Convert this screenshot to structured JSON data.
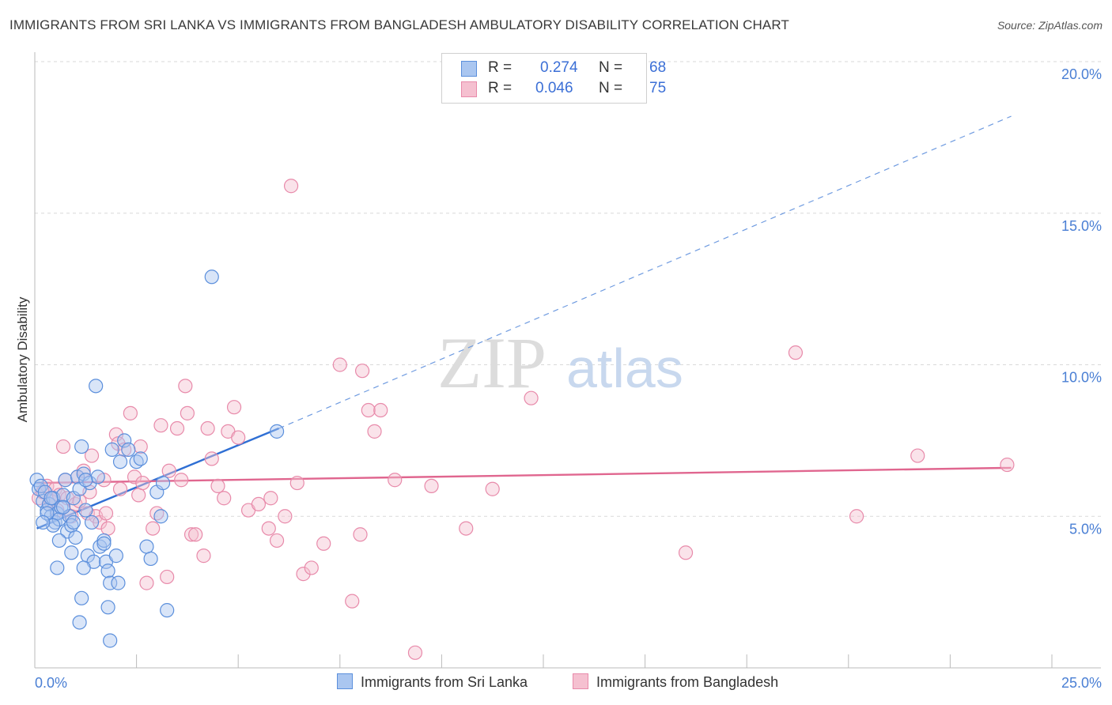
{
  "title": "IMMIGRANTS FROM SRI LANKA VS IMMIGRANTS FROM BANGLADESH AMBULATORY DISABILITY CORRELATION CHART",
  "source": "Source: ZipAtlas.com",
  "watermark": {
    "zip": "ZIP",
    "atlas": "atlas"
  },
  "legend": {
    "r_label": "R =",
    "n_label": "N =",
    "rows": [
      {
        "r": "0.274",
        "n": "68",
        "fill": "#aac6f0",
        "stroke": "#5b8fdc"
      },
      {
        "r": "0.046",
        "n": "75",
        "fill": "#f5c0d0",
        "stroke": "#e88aaa"
      }
    ]
  },
  "chart_data": {
    "type": "scatter",
    "title": "IMMIGRANTS FROM SRI LANKA VS IMMIGRANTS FROM BANGLADESH AMBULATORY DISABILITY CORRELATION CHART",
    "xlabel": "",
    "ylabel": "Ambulatory Disability",
    "xlim": [
      0,
      25
    ],
    "ylim": [
      0,
      20
    ],
    "x_tick_labels": [
      "0.0%",
      "25.0%"
    ],
    "y_tick_labels": [
      "5.0%",
      "10.0%",
      "15.0%",
      "20.0%"
    ],
    "y_ticks": [
      5,
      10,
      15,
      20
    ],
    "series": [
      {
        "name": "Immigrants from Sri Lanka",
        "color": "#5b8fdc",
        "fill": "#aac6f0",
        "r": 0.274,
        "n": 68,
        "trend": {
          "x0": 0.05,
          "y0": 4.6,
          "x1": 6.0,
          "y1": 7.9,
          "dash_to_x": 24.0,
          "dash_to_y": 18.2
        },
        "points": [
          [
            0.05,
            6.2
          ],
          [
            0.1,
            5.9
          ],
          [
            0.15,
            6.0
          ],
          [
            0.2,
            5.5
          ],
          [
            0.25,
            5.8
          ],
          [
            0.3,
            5.2
          ],
          [
            0.35,
            5.4
          ],
          [
            0.4,
            5.0
          ],
          [
            0.45,
            5.6
          ],
          [
            0.5,
            4.8
          ],
          [
            0.55,
            5.1
          ],
          [
            0.6,
            4.9
          ],
          [
            0.65,
            5.3
          ],
          [
            0.7,
            5.7
          ],
          [
            0.75,
            6.2
          ],
          [
            0.8,
            4.5
          ],
          [
            0.85,
            5.0
          ],
          [
            0.9,
            4.7
          ],
          [
            0.95,
            5.6
          ],
          [
            1.0,
            4.3
          ],
          [
            1.05,
            6.3
          ],
          [
            1.1,
            5.9
          ],
          [
            1.15,
            7.3
          ],
          [
            1.2,
            6.4
          ],
          [
            1.25,
            5.2
          ],
          [
            1.3,
            3.7
          ],
          [
            1.35,
            6.1
          ],
          [
            1.4,
            4.8
          ],
          [
            1.45,
            3.5
          ],
          [
            1.5,
            9.3
          ],
          [
            1.55,
            6.3
          ],
          [
            1.6,
            4.0
          ],
          [
            1.7,
            4.2
          ],
          [
            1.75,
            3.5
          ],
          [
            1.8,
            3.2
          ],
          [
            1.85,
            2.8
          ],
          [
            1.9,
            7.2
          ],
          [
            2.0,
            3.7
          ],
          [
            2.05,
            2.8
          ],
          [
            2.1,
            6.8
          ],
          [
            2.2,
            7.5
          ],
          [
            2.3,
            7.2
          ],
          [
            2.5,
            6.8
          ],
          [
            2.6,
            6.9
          ],
          [
            2.75,
            4.0
          ],
          [
            2.85,
            3.6
          ],
          [
            3.0,
            5.8
          ],
          [
            3.1,
            5.0
          ],
          [
            3.25,
            1.9
          ],
          [
            1.8,
            2.0
          ],
          [
            1.7,
            4.1
          ],
          [
            1.2,
            3.3
          ],
          [
            0.6,
            4.2
          ],
          [
            0.55,
            3.3
          ],
          [
            0.9,
            3.8
          ],
          [
            1.15,
            2.3
          ],
          [
            1.1,
            1.5
          ],
          [
            1.85,
            0.9
          ],
          [
            0.3,
            5.1
          ],
          [
            0.45,
            4.7
          ],
          [
            0.7,
            5.3
          ],
          [
            0.95,
            4.8
          ],
          [
            3.15,
            6.1
          ],
          [
            5.95,
            7.8
          ],
          [
            4.35,
            12.9
          ],
          [
            1.25,
            6.2
          ],
          [
            0.4,
            5.6
          ],
          [
            0.2,
            4.8
          ]
        ]
      },
      {
        "name": "Immigrants from Bangladesh",
        "color": "#e8739a",
        "fill": "#f5c0d0",
        "r": 0.046,
        "n": 75,
        "trend": {
          "x0": 0.05,
          "y0": 6.1,
          "x1": 24.0,
          "y1": 6.6
        },
        "points": [
          [
            0.1,
            5.6
          ],
          [
            0.2,
            5.8
          ],
          [
            0.3,
            6.0
          ],
          [
            0.35,
            5.4
          ],
          [
            0.4,
            5.5
          ],
          [
            0.5,
            5.9
          ],
          [
            0.55,
            5.2
          ],
          [
            0.6,
            5.7
          ],
          [
            0.7,
            7.3
          ],
          [
            0.75,
            6.2
          ],
          [
            0.8,
            5.6
          ],
          [
            0.9,
            5.0
          ],
          [
            1.0,
            5.4
          ],
          [
            1.05,
            6.3
          ],
          [
            1.1,
            5.5
          ],
          [
            1.2,
            6.5
          ],
          [
            1.3,
            5.1
          ],
          [
            1.35,
            5.8
          ],
          [
            1.4,
            7.0
          ],
          [
            1.5,
            5.0
          ],
          [
            1.6,
            4.8
          ],
          [
            1.7,
            6.2
          ],
          [
            1.75,
            5.1
          ],
          [
            1.8,
            4.6
          ],
          [
            2.0,
            7.7
          ],
          [
            2.05,
            7.4
          ],
          [
            2.1,
            5.9
          ],
          [
            2.2,
            7.2
          ],
          [
            2.35,
            8.4
          ],
          [
            2.45,
            6.3
          ],
          [
            2.55,
            5.7
          ],
          [
            2.65,
            6.1
          ],
          [
            2.75,
            2.8
          ],
          [
            2.9,
            4.6
          ],
          [
            3.0,
            5.1
          ],
          [
            3.1,
            8.0
          ],
          [
            3.25,
            3.0
          ],
          [
            3.3,
            6.5
          ],
          [
            3.5,
            7.9
          ],
          [
            3.6,
            6.2
          ],
          [
            3.7,
            9.3
          ],
          [
            3.75,
            8.4
          ],
          [
            3.85,
            4.4
          ],
          [
            3.95,
            4.4
          ],
          [
            4.15,
            3.7
          ],
          [
            4.25,
            7.9
          ],
          [
            4.35,
            6.9
          ],
          [
            4.5,
            6.0
          ],
          [
            4.65,
            5.6
          ],
          [
            4.75,
            7.8
          ],
          [
            4.9,
            8.6
          ],
          [
            5.0,
            7.6
          ],
          [
            5.25,
            5.2
          ],
          [
            5.5,
            5.4
          ],
          [
            5.8,
            5.6
          ],
          [
            5.95,
            4.2
          ],
          [
            6.15,
            5.0
          ],
          [
            6.3,
            15.9
          ],
          [
            6.45,
            6.1
          ],
          [
            6.6,
            3.1
          ],
          [
            6.8,
            3.3
          ],
          [
            7.1,
            4.1
          ],
          [
            7.5,
            10.0
          ],
          [
            7.8,
            2.2
          ],
          [
            8.05,
            9.8
          ],
          [
            8.2,
            8.5
          ],
          [
            8.35,
            7.8
          ],
          [
            8.5,
            8.5
          ],
          [
            8.85,
            6.2
          ],
          [
            9.75,
            6.0
          ],
          [
            10.6,
            4.6
          ],
          [
            11.25,
            5.9
          ],
          [
            16.0,
            3.8
          ],
          [
            18.7,
            10.4
          ],
          [
            20.2,
            5.0
          ]
        ]
      }
    ],
    "extra_points_bangladesh": [
      [
        8.0,
        4.4
      ],
      [
        9.35,
        0.5
      ],
      [
        12.2,
        8.9
      ],
      [
        21.7,
        7.0
      ],
      [
        23.9,
        6.7
      ],
      [
        5.75,
        4.6
      ],
      [
        2.6,
        7.3
      ]
    ]
  },
  "bottom_legend": [
    {
      "label": "Immigrants from Sri Lanka",
      "fill": "#aac6f0",
      "stroke": "#5b8fdc"
    },
    {
      "label": "Immigrants from Bangladesh",
      "fill": "#f5c0d0",
      "stroke": "#e88aaa"
    }
  ]
}
